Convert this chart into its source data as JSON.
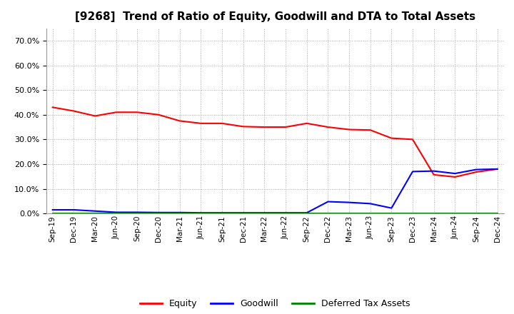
{
  "title": "[9268]  Trend of Ratio of Equity, Goodwill and DTA to Total Assets",
  "x_labels": [
    "Sep-19",
    "Dec-19",
    "Mar-20",
    "Jun-20",
    "Sep-20",
    "Dec-20",
    "Mar-21",
    "Jun-21",
    "Sep-21",
    "Dec-21",
    "Mar-22",
    "Jun-22",
    "Sep-22",
    "Dec-22",
    "Mar-23",
    "Jun-23",
    "Sep-23",
    "Dec-23",
    "Mar-24",
    "Jun-24",
    "Sep-24",
    "Dec-24"
  ],
  "equity": [
    0.43,
    0.415,
    0.395,
    0.41,
    0.41,
    0.4,
    0.375,
    0.365,
    0.365,
    0.352,
    0.35,
    0.35,
    0.365,
    0.35,
    0.34,
    0.338,
    0.305,
    0.3,
    0.157,
    0.148,
    0.168,
    0.18
  ],
  "goodwill": [
    0.015,
    0.015,
    0.01,
    0.005,
    0.005,
    0.004,
    0.004,
    0.003,
    0.003,
    0.003,
    0.003,
    0.003,
    0.003,
    0.048,
    0.045,
    0.04,
    0.022,
    0.17,
    0.172,
    0.162,
    0.178,
    0.18
  ],
  "dta": [
    0.0,
    0.0,
    0.0,
    0.0,
    0.0,
    0.0,
    0.0,
    0.0,
    0.0,
    0.0,
    0.0,
    0.0,
    0.0,
    0.0,
    0.0,
    0.0,
    0.0,
    0.0,
    0.0,
    0.0,
    0.0,
    0.0
  ],
  "equity_color": "#FF0000",
  "goodwill_color": "#0000FF",
  "dta_color": "#008000",
  "background_color": "#FFFFFF",
  "plot_bg_color": "#FFFFFF",
  "grid_color": "#AAAAAA",
  "ylim": [
    0.0,
    0.75
  ],
  "yticks": [
    0.0,
    0.1,
    0.2,
    0.3,
    0.4,
    0.5,
    0.6,
    0.7
  ],
  "title_fontsize": 11,
  "legend_labels": [
    "Equity",
    "Goodwill",
    "Deferred Tax Assets"
  ]
}
